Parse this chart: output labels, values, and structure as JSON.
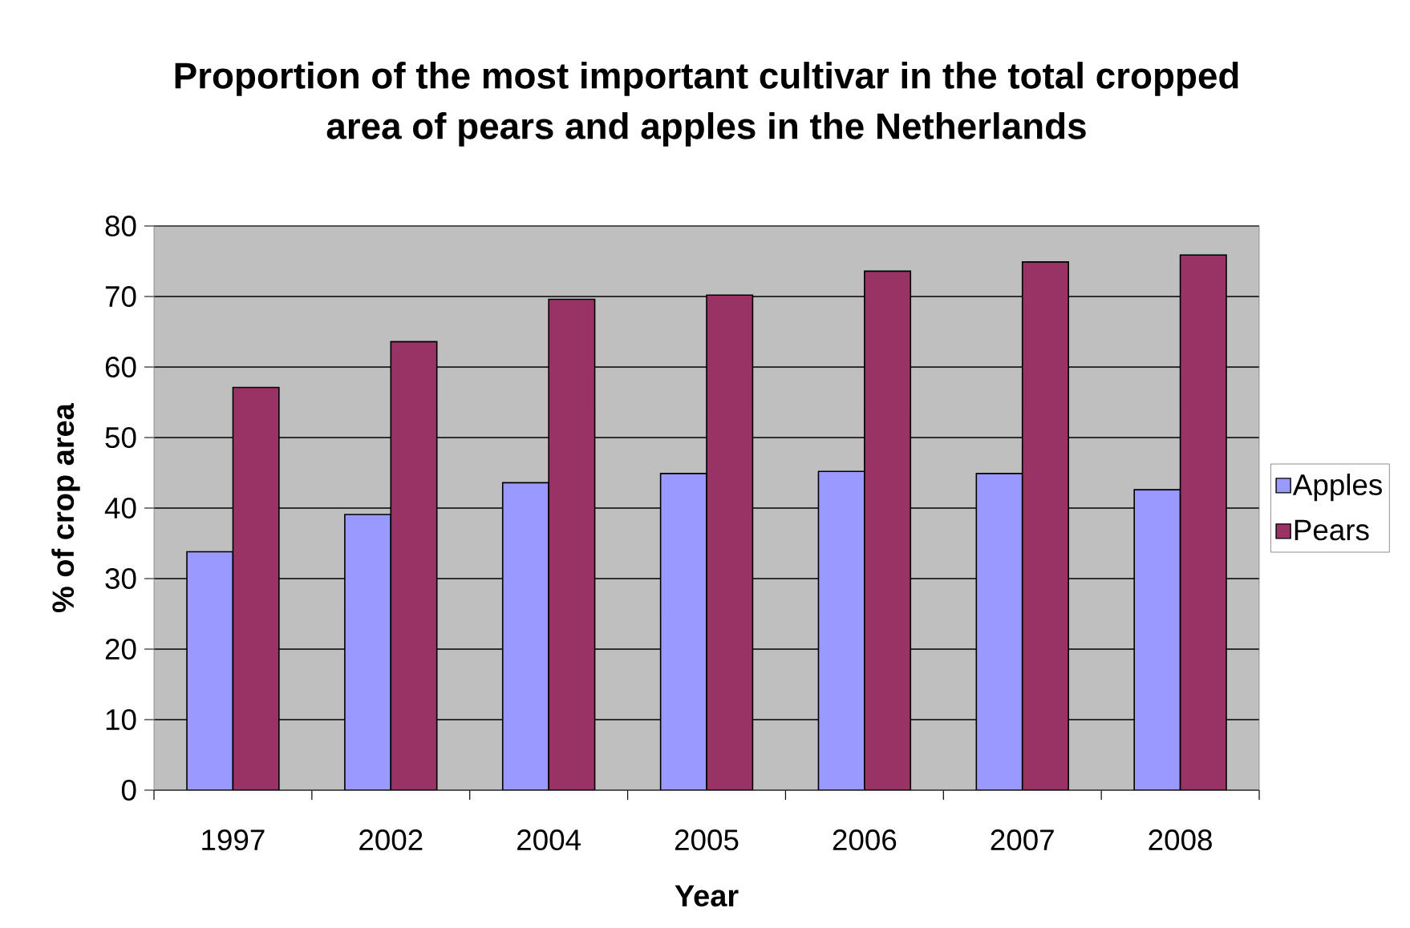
{
  "chart_data": {
    "type": "bar",
    "title": "Proportion of the most important cultivar in the total cropped area of pears and apples in the Netherlands",
    "xlabel": "Year",
    "ylabel": "% of crop area",
    "categories": [
      "1997",
      "2002",
      "2004",
      "2005",
      "2006",
      "2007",
      "2008"
    ],
    "series": [
      {
        "name": "Apples",
        "color": "#9999ff",
        "values": [
          33.8,
          39.1,
          43.6,
          44.9,
          45.2,
          44.9,
          42.6
        ]
      },
      {
        "name": "Pears",
        "color": "#993366",
        "values": [
          57.1,
          63.6,
          69.6,
          70.2,
          73.6,
          74.9,
          75.9
        ]
      }
    ],
    "ylim": [
      0,
      80
    ],
    "yticks": [
      0,
      10,
      20,
      30,
      40,
      50,
      60,
      70,
      80
    ],
    "grid": "y",
    "legend": "right"
  }
}
